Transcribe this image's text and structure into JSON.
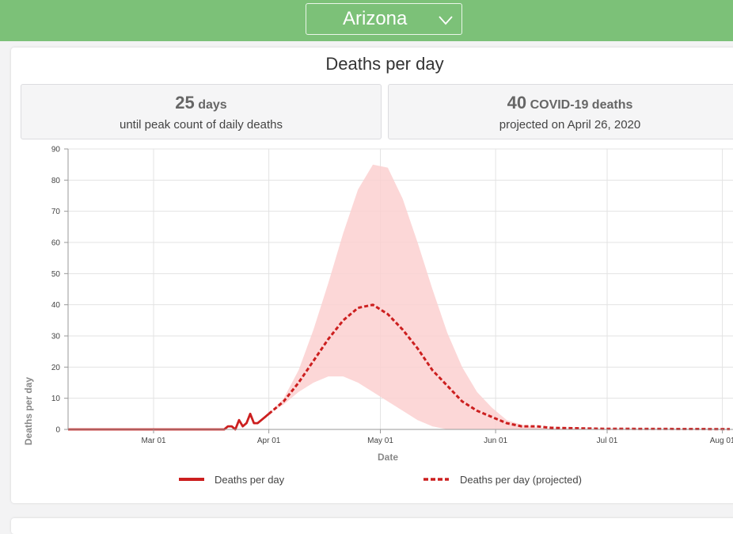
{
  "header": {
    "state": "Arizona"
  },
  "stats": {
    "peak_days": "25",
    "peak_days_unit": "days",
    "peak_days_caption": "until peak count of daily deaths",
    "deaths_value": "40",
    "deaths_unit": "COVID-19 deaths",
    "deaths_caption": "projected on April 26, 2020"
  },
  "colors": {
    "header": "#7cc178",
    "line": "#cc1f1f",
    "band": "#fbd0d0"
  },
  "chart_data": {
    "type": "line",
    "title": "Deaths per day",
    "xlabel": "Date",
    "ylabel": "Deaths per day",
    "xlim": [
      "2020-02-07",
      "2020-08-03"
    ],
    "ylim": [
      0,
      90
    ],
    "y_ticks": [
      0,
      10,
      20,
      30,
      40,
      50,
      60,
      70,
      80,
      90
    ],
    "x_ticks": [
      {
        "date": "2020-03-01",
        "label": "Mar 01"
      },
      {
        "date": "2020-04-01",
        "label": "Apr 01"
      },
      {
        "date": "2020-05-01",
        "label": "May 01"
      },
      {
        "date": "2020-06-01",
        "label": "Jun 01"
      },
      {
        "date": "2020-07-01",
        "label": "Jul 01"
      },
      {
        "date": "2020-08-01",
        "label": "Aug 01"
      }
    ],
    "grid": true,
    "legend_position": "bottom",
    "series": [
      {
        "name": "Deaths per day",
        "style": "solid",
        "x": [
          "2020-02-07",
          "2020-03-20",
          "2020-03-21",
          "2020-03-22",
          "2020-03-23",
          "2020-03-24",
          "2020-03-25",
          "2020-03-26",
          "2020-03-27",
          "2020-03-28",
          "2020-03-29",
          "2020-03-30",
          "2020-03-31",
          "2020-04-01"
        ],
        "y": [
          0,
          0,
          1,
          1,
          0,
          3,
          1,
          2,
          5,
          2,
          2,
          3,
          4,
          5
        ]
      },
      {
        "name": "Deaths per day (projected)",
        "style": "dashed",
        "x": [
          "2020-04-01",
          "2020-04-05",
          "2020-04-09",
          "2020-04-13",
          "2020-04-17",
          "2020-04-21",
          "2020-04-25",
          "2020-04-29",
          "2020-05-03",
          "2020-05-07",
          "2020-05-11",
          "2020-05-15",
          "2020-05-19",
          "2020-05-23",
          "2020-05-27",
          "2020-05-31",
          "2020-06-04",
          "2020-06-08",
          "2020-06-12",
          "2020-06-16",
          "2020-06-30",
          "2020-07-31",
          "2020-08-03"
        ],
        "y": [
          5,
          9,
          15,
          22,
          29,
          35,
          39,
          40,
          37,
          32,
          26,
          19,
          14,
          9,
          6,
          4,
          2,
          1,
          1,
          0.5,
          0.2,
          0.1,
          0.1
        ]
      }
    ],
    "band": {
      "x": [
        "2020-04-01",
        "2020-04-05",
        "2020-04-09",
        "2020-04-13",
        "2020-04-17",
        "2020-04-21",
        "2020-04-25",
        "2020-04-29",
        "2020-05-03",
        "2020-05-07",
        "2020-05-11",
        "2020-05-15",
        "2020-05-19",
        "2020-05-23",
        "2020-05-27",
        "2020-05-31",
        "2020-06-04",
        "2020-06-08",
        "2020-06-12",
        "2020-06-16",
        "2020-06-30",
        "2020-07-31",
        "2020-08-03"
      ],
      "upper": [
        5,
        10,
        19,
        32,
        47,
        63,
        77,
        85,
        84,
        74,
        60,
        45,
        31,
        20,
        12,
        7,
        3,
        1.5,
        0.6,
        0.3,
        0.2,
        0.1,
        0.1
      ],
      "lower": [
        5,
        8,
        12,
        15,
        17,
        17,
        15,
        12,
        9,
        6,
        3,
        1,
        0,
        0,
        0,
        0,
        0,
        0,
        0,
        0,
        0,
        0,
        0
      ]
    }
  },
  "legend": {
    "solid_label": "Deaths per day",
    "dashed_label": "Deaths per day (projected)"
  }
}
